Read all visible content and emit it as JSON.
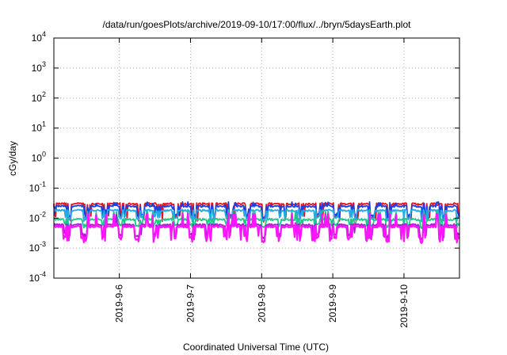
{
  "chart_data": {
    "type": "line",
    "title": "/data/run/goesPlots/archive/2019-09-10/17:00/flux/../bryn/5daysEarth.plot",
    "xlabel": "Coordinated Universal Time (UTC)",
    "ylabel": "cGy/day",
    "yscale": "log",
    "ylim": [
      0.0001,
      10000
    ],
    "xlim": [
      5.08,
      10.78
    ],
    "grid": true,
    "y_ticks": [
      {
        "value": 0.0001,
        "base": "10",
        "exp": "-4"
      },
      {
        "value": 0.001,
        "base": "10",
        "exp": "-3"
      },
      {
        "value": 0.01,
        "base": "10",
        "exp": "-2"
      },
      {
        "value": 0.1,
        "base": "10",
        "exp": "-1"
      },
      {
        "value": 1,
        "base": "10",
        "exp": "0"
      },
      {
        "value": 10,
        "base": "10",
        "exp": "1"
      },
      {
        "value": 100,
        "base": "10",
        "exp": "2"
      },
      {
        "value": 1000,
        "base": "10",
        "exp": "3"
      },
      {
        "value": 10000,
        "base": "10",
        "exp": "4"
      }
    ],
    "x_ticks": [
      {
        "value": 6,
        "label": "2019-9-6"
      },
      {
        "value": 7,
        "label": "2019-9-7"
      },
      {
        "value": 8,
        "label": "2019-9-8"
      },
      {
        "value": 9,
        "label": "2019-9-9"
      },
      {
        "value": 10,
        "label": "2019-9-10"
      }
    ],
    "series": [
      {
        "color": "#e8111d",
        "base": 0.03,
        "dip": 0.25,
        "spike": 0.9
      },
      {
        "color": "#1c3fe0",
        "base": 0.025,
        "dip": 0.4,
        "spike": 1.3
      },
      {
        "color": "#27a9e1",
        "base": 0.018,
        "dip": 0.45,
        "spike": 1.0
      },
      {
        "color": "#1fc68a",
        "base": 0.009,
        "dip": 0.55,
        "spike": 1.8
      },
      {
        "color": "#a01fd0",
        "base": 0.006,
        "dip": 0.35,
        "spike": 2.2
      },
      {
        "color": "#ff14ff",
        "base": 0.0052,
        "dip": 0.3,
        "spike": 2.6
      }
    ]
  }
}
